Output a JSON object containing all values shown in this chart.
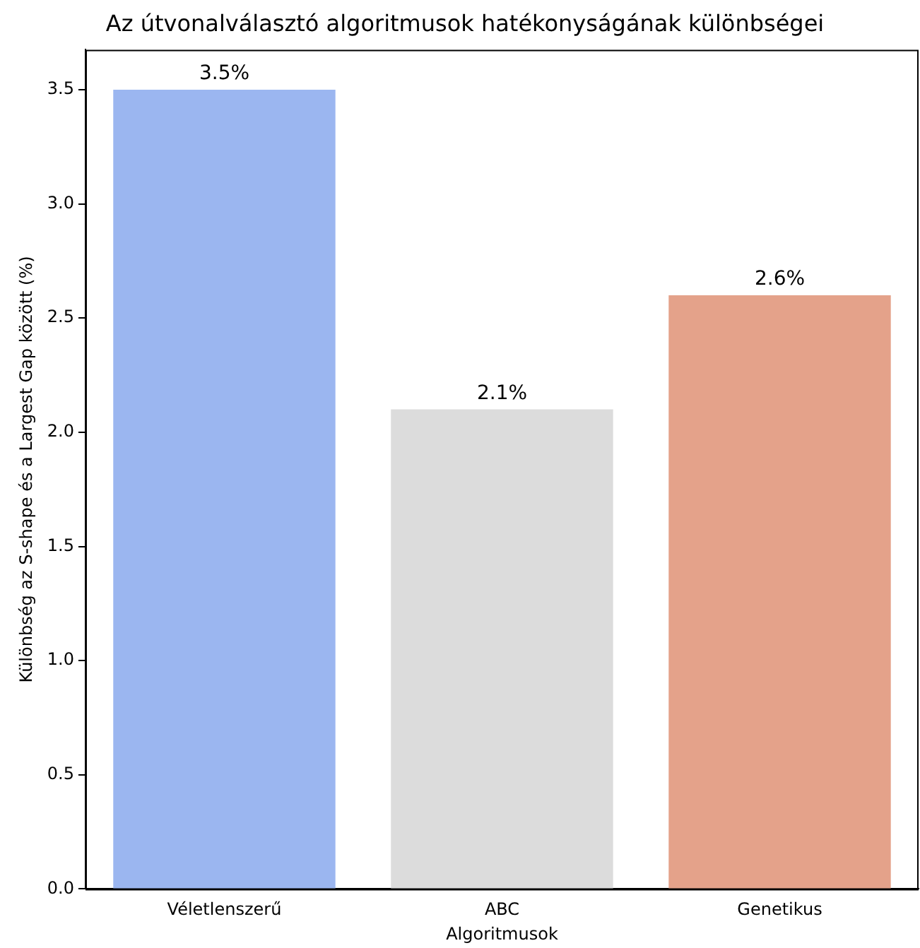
{
  "chart_data": {
    "type": "bar",
    "title": "Az útvonalválasztó algoritmusok hatékonyságának különbségei",
    "xlabel": "Algoritmusok",
    "ylabel": "Különbség az S-shape és a Largest Gap között (%)",
    "categories": [
      "Véletlenszerű",
      "ABC",
      "Genetikus"
    ],
    "values": [
      3.5,
      2.1,
      2.6
    ],
    "value_labels": [
      "3.5%",
      "2.1%",
      "2.6%"
    ],
    "colors": [
      "#9bb6f0",
      "#dcdcdc",
      "#e4a28a"
    ],
    "ylim": [
      0,
      3.675
    ],
    "yticks": [
      {
        "value": 0,
        "label": "0.0"
      },
      {
        "value": 0.5,
        "label": "0.5"
      },
      {
        "value": 1,
        "label": "1.0"
      },
      {
        "value": 1.5,
        "label": "1.5"
      },
      {
        "value": 2,
        "label": "2.0"
      },
      {
        "value": 2.5,
        "label": "2.5"
      },
      {
        "value": 3,
        "label": "3.0"
      },
      {
        "value": 3.5,
        "label": "3.5"
      }
    ],
    "grid": false,
    "legend": false
  }
}
